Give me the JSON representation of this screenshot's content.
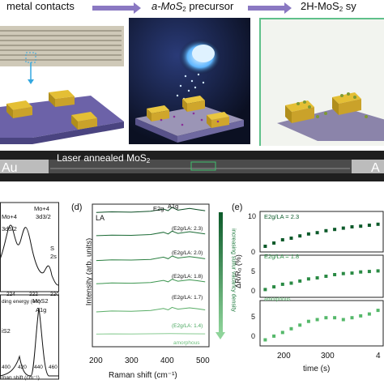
{
  "top": {
    "stage1": "metal contacts",
    "stage2_prefix": "a-MoS",
    "stage2_sub": "2",
    "stage2_suffix": " precursor",
    "stage3_prefix": "2H-MoS",
    "stage3_sub": "2",
    "stage3_suffix": " sy"
  },
  "strip": {
    "left": "Au",
    "caption_prefix": "Laser annealed MoS",
    "caption_sub": "2",
    "right": "A"
  },
  "panel_c": {
    "peaks": [
      "Mo+4",
      "3d5/2",
      "Mo+4",
      "3d3/2",
      "S",
      "2s"
    ],
    "xlabel": "ding energy (eV)",
    "xticks": [
      "224",
      "222",
      "220"
    ],
    "raman_labels": [
      "MoS2",
      "A1g",
      "iS2"
    ],
    "raman_xlabel": "man shift (cm⁻¹)",
    "raman_xticks": [
      "400",
      "420",
      "440",
      "460"
    ]
  },
  "panel_d": {
    "tag": "(d)",
    "ylabel": "Intensity (arb. units)",
    "xlabel": "Raman shift (cm⁻¹)",
    "xticks": [
      "200",
      "300",
      "400",
      "500"
    ],
    "LA": "LA",
    "E2g": "E2g",
    "A1g": "A1g",
    "ratios": [
      "(E2g/LA: 2.3)",
      "(E2g/LA: 2.0)",
      "(E2g/LA: 1.8)",
      "(E2g/LA: 1.7)",
      "(E2g/LA: 1.4)",
      "amorphous"
    ],
    "arrow_text": "increasing sulfur vacancy density"
  },
  "panel_e": {
    "tag": "(e)",
    "ylabel": "ΔR/R₀ (%)",
    "xlabel": "time (s)",
    "xticks": [
      "200",
      "300",
      "4"
    ],
    "yticks": [
      "10",
      "5",
      "0"
    ],
    "labels": [
      "E2g/LA = 2.3",
      "E2g/LA = 1.8",
      "amorphous"
    ],
    "colors": [
      "#0c5a2a",
      "#2a8a44",
      "#55b86a"
    ]
  },
  "chart_data": [
    {
      "type": "line",
      "title": "",
      "xlabel": "Raman shift (cm⁻¹)",
      "ylabel": "Intensity (arb. units)",
      "xlim": [
        200,
        500
      ],
      "series": [
        {
          "name": "(E2g/LA: 2.3)",
          "x": [
            210,
            250,
            300,
            350,
            383,
            395,
            405,
            420,
            450,
            470,
            490
          ],
          "y": [
            0.7,
            0.75,
            0.72,
            0.8,
            1.0,
            0.85,
            1.15,
            0.9,
            1.05,
            0.95,
            0.85
          ]
        },
        {
          "name": "(E2g/LA: 2.0)",
          "x": [
            210,
            250,
            300,
            350,
            383,
            395,
            405,
            420,
            450,
            470,
            490
          ],
          "y": [
            0.65,
            0.7,
            0.68,
            0.75,
            0.95,
            0.8,
            1.05,
            0.85,
            1.0,
            0.9,
            0.8
          ]
        },
        {
          "name": "(E2g/LA: 1.8)",
          "x": [
            210,
            250,
            300,
            350,
            383,
            395,
            405,
            420,
            450,
            470,
            490
          ],
          "y": [
            0.6,
            0.66,
            0.64,
            0.7,
            0.9,
            0.76,
            1.0,
            0.82,
            0.95,
            0.86,
            0.76
          ]
        },
        {
          "name": "(E2g/LA: 1.7)",
          "x": [
            210,
            250,
            300,
            350,
            383,
            395,
            405,
            420,
            450,
            470,
            490
          ],
          "y": [
            0.55,
            0.62,
            0.6,
            0.66,
            0.85,
            0.72,
            0.95,
            0.78,
            0.9,
            0.82,
            0.72
          ]
        },
        {
          "name": "(E2g/LA: 1.4)",
          "x": [
            210,
            250,
            300,
            350,
            383,
            395,
            405,
            420,
            450,
            470,
            490
          ],
          "y": [
            0.5,
            0.58,
            0.56,
            0.62,
            0.8,
            0.68,
            0.9,
            0.74,
            0.86,
            0.78,
            0.68
          ]
        },
        {
          "name": "amorphous",
          "x": [
            210,
            250,
            300,
            350,
            400,
            450,
            490
          ],
          "y": [
            0.4,
            0.42,
            0.41,
            0.43,
            0.44,
            0.43,
            0.42
          ]
        }
      ]
    },
    {
      "type": "scatter",
      "title": "",
      "xlabel": "time (s)",
      "ylabel": "ΔR/R₀ (%)",
      "xlim": [
        130,
        410
      ],
      "series": [
        {
          "name": "E2g/LA = 2.3",
          "x": [
            140,
            160,
            180,
            200,
            220,
            240,
            260,
            280,
            300,
            320,
            340,
            360,
            380,
            400
          ],
          "y": [
            0,
            1,
            2,
            2.5,
            3.2,
            3.8,
            4.2,
            4.8,
            5.2,
            5.6,
            6,
            6.2,
            6.5,
            6.8
          ]
        },
        {
          "name": "E2g/LA = 1.8",
          "x": [
            140,
            160,
            180,
            200,
            220,
            240,
            260,
            280,
            300,
            320,
            340,
            360,
            380,
            400
          ],
          "y": [
            0,
            0.5,
            1,
            1.2,
            1.6,
            2,
            2.2,
            2.5,
            2.8,
            3,
            3.1,
            3.3,
            3.4,
            3.5
          ]
        },
        {
          "name": "amorphous",
          "x": [
            140,
            160,
            180,
            200,
            220,
            240,
            260,
            280,
            300,
            320,
            340,
            360,
            380,
            400
          ],
          "y": [
            -1,
            0,
            1,
            2,
            3,
            4,
            4.5,
            5,
            5,
            4.5,
            5,
            5.5,
            6,
            7
          ]
        }
      ]
    }
  ]
}
